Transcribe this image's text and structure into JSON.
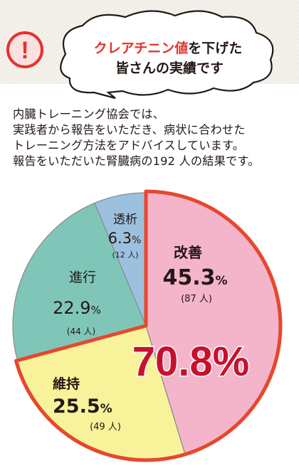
{
  "heading": {
    "highlight": "クレアチニン値",
    "line1_rest": "を下げた",
    "line2": "皆さんの実績です",
    "alert_symbol": "!"
  },
  "intro_lines": [
    "内臓トレーニング協会では、",
    "実践者から報告をいただき、病状に合わせた",
    "トレーニング方法をアドバイスしています。",
    "報告をいただいた腎臓病の192 人の結果です。"
  ],
  "colors": {
    "highlight_red": "#e5332a",
    "improve": "#f4b5cb",
    "maintain": "#f8f29a",
    "progress": "#7fc6b9",
    "dialysis": "#9cc1de",
    "callout_outline": "#e8472d",
    "total_text": "#c8102e"
  },
  "chart_data": {
    "type": "pie",
    "total_patients": 192,
    "slices": [
      {
        "name": "改善",
        "value": 45.3,
        "label": "45.3",
        "unit": "%",
        "count": "(87 人)",
        "color": "#f4b5cb"
      },
      {
        "name": "維持",
        "value": 25.5,
        "label": "25.5",
        "unit": "%",
        "count": "(49 人)",
        "color": "#f8f29a"
      },
      {
        "name": "進行",
        "value": 22.9,
        "label": "22.9",
        "unit": "%",
        "count": "(44 人)",
        "color": "#7fc6b9"
      },
      {
        "name": "透析",
        "value": 6.3,
        "label": "6.3",
        "unit": "%",
        "count": "(12 人)",
        "color": "#9cc1de"
      }
    ],
    "highlighted_total": "70.8%",
    "highlighted_slices": [
      "改善",
      "維持"
    ]
  }
}
